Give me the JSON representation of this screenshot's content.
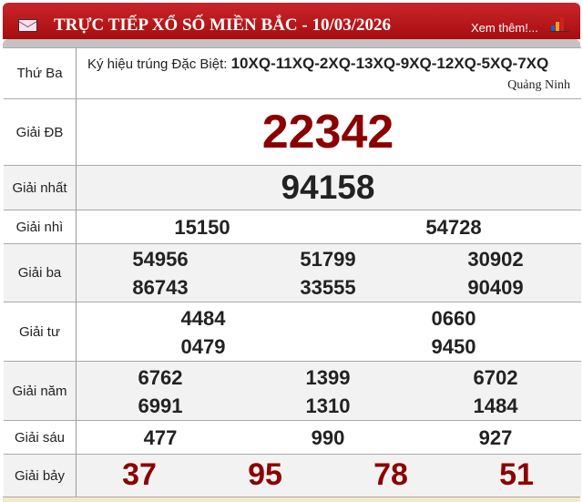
{
  "header": {
    "title": "TRỰC TIẾP XỔ SỐ MIỀN BẮC - 10/03/2026",
    "more_link": "Xem thêm!...",
    "icons": [
      "mail-icon",
      "bar-chart-icon"
    ]
  },
  "info": {
    "day": "Thứ Ba",
    "symbol_label": "Ký hiệu trúng Đặc Biệt:",
    "symbol_codes": "10XQ-11XQ-2XQ-13XQ-9XQ-12XQ-5XQ-7XQ",
    "province": "Quảng Ninh"
  },
  "prizes": {
    "db": {
      "label": "Giải ĐB",
      "numbers": [
        "22342"
      ]
    },
    "g1": {
      "label": "Giải nhất",
      "numbers": [
        "94158"
      ]
    },
    "g2": {
      "label": "Giải nhì",
      "numbers": [
        "15150",
        "54728"
      ]
    },
    "g3": {
      "label": "Giải ba",
      "numbers": [
        "54956",
        "51799",
        "30902",
        "86743",
        "33555",
        "90409"
      ]
    },
    "g4": {
      "label": "Giải tư",
      "numbers": [
        "4484",
        "0660",
        "0479",
        "9450"
      ]
    },
    "g5": {
      "label": "Giải năm",
      "numbers": [
        "6762",
        "1399",
        "6702",
        "6991",
        "1310",
        "1484"
      ]
    },
    "g6": {
      "label": "Giải sáu",
      "numbers": [
        "477",
        "990",
        "927"
      ]
    },
    "g7": {
      "label": "Giải bảy",
      "numbers": [
        "37",
        "95",
        "78",
        "51"
      ]
    }
  },
  "colors": {
    "header": "#b51519",
    "special": "#8b0000"
  }
}
